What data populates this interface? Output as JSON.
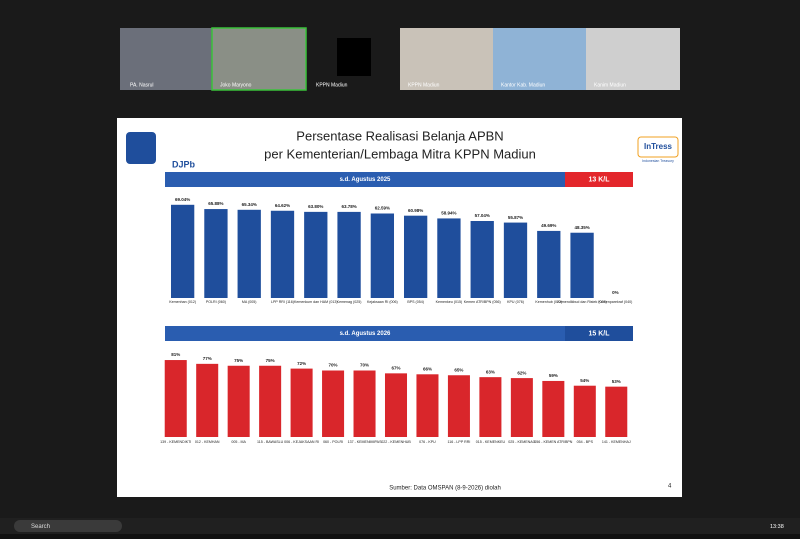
{
  "participants": [
    "PA. Nasrul",
    "Joko Maryono",
    "KPPN Madiun",
    "KPPN Madiun",
    "Kantor Kab. Madiun",
    "Kanim Madiun"
  ],
  "slide": {
    "title_line1": "Persentase Realisasi Belanja APBN",
    "title_line2": "per Kementerian/Lembaga Mitra KPPN Madiun",
    "logo_left": "DJPb",
    "logo_right": "InTress",
    "logo_right_sub": "Indonesian Treasury",
    "source": "Sumber: Data OMSPAN (8-9-2026) diolah",
    "page": "4"
  },
  "taskbar": {
    "search": "Search",
    "time": "13:38"
  },
  "chart_data": [
    {
      "type": "bar",
      "period": "s.d. Agustus 2025",
      "count": "13 K/L",
      "color": "#1f4e9c",
      "categories": [
        "Kemenhan (012)",
        "POLRI (060)",
        "MA (005)",
        "LPP RRI (116)",
        "Kemenkum dan HAM (013)",
        "Kemenag (025)",
        "Kejaksaan RI (006)",
        "BPS (054)",
        "Kemenkeu (015)",
        "Kemen ATR/BPN (056)",
        "KPU (076)",
        "Kemenhub (022)",
        "Kemendikbud dan Ristek (023)",
        "Kemenparekraf (040)"
      ],
      "values": [
        69.04,
        65.88,
        65.34,
        64.62,
        63.8,
        63.78,
        62.59,
        60.98,
        58.94,
        57.04,
        55.87,
        49.69,
        48.35,
        0
      ],
      "value_labels": [
        "69.04%",
        "65.88%",
        "65.34%",
        "64.62%",
        "63.80%",
        "63.78%",
        "62.59%",
        "60.98%",
        "58.94%",
        "57.04%",
        "55.87%",
        "49.69%",
        "48.35%",
        "0%"
      ]
    },
    {
      "type": "bar",
      "period": "s.d. Agustus 2026",
      "count": "15 K/L",
      "color": "#d9262b",
      "categories": [
        "139 - KEMENDIKTI",
        "012 - KEMHAN",
        "005 - MA",
        "115 - BAWASLU",
        "006 - KEJAKSAAN RI",
        "060 - POLRI",
        "137 - KEMENIMIPAS",
        "022 - KEMENHUB",
        "076 - KPU",
        "116 - LPP RRI",
        "015 - KEMENKEU",
        "025 - KEMENAG",
        "056 - KEMEN ATR/BPN",
        "054 - BPS",
        "141 - KEMENHAJ"
      ],
      "values": [
        81,
        77,
        75,
        75,
        72,
        70,
        70,
        67,
        66,
        65,
        63,
        62,
        59,
        54,
        53
      ],
      "value_labels": [
        "81%",
        "77%",
        "75%",
        "75%",
        "72%",
        "70%",
        "70%",
        "67%",
        "66%",
        "65%",
        "63%",
        "62%",
        "59%",
        "54%",
        "53%"
      ]
    }
  ]
}
